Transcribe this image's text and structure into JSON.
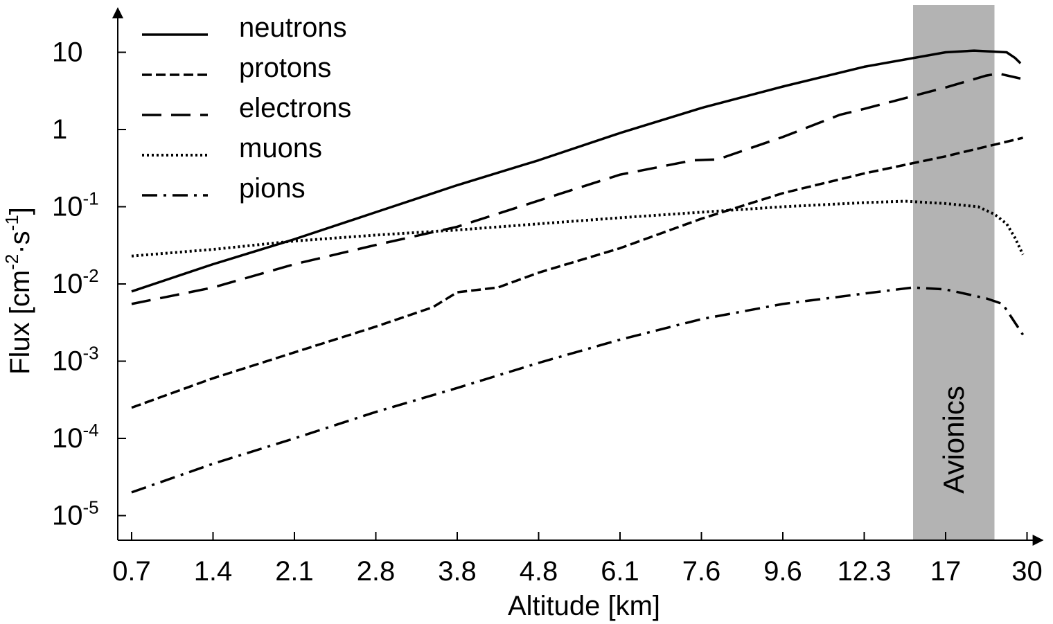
{
  "chart_data": {
    "type": "line",
    "xlabel": "Altitude [km]",
    "ylabel": {
      "base": "Flux [cm",
      "exp1": "-2",
      "mid": "·s",
      "exp2": "-1",
      "end": "]"
    },
    "x_scale": "categorical-ticks",
    "x_ticks": [
      "0.7",
      "1.4",
      "2.1",
      "2.8",
      "3.8",
      "4.8",
      "6.1",
      "7.6",
      "9.6",
      "12.3",
      "17",
      "30"
    ],
    "y_scale": "log",
    "y_range": [
      5e-06,
      20
    ],
    "y_ticks": [
      {
        "value": 1e-05,
        "base": "10",
        "exp": "-5"
      },
      {
        "value": 0.0001,
        "base": "10",
        "exp": "-4"
      },
      {
        "value": 0.001,
        "base": "10",
        "exp": "-3"
      },
      {
        "value": 0.01,
        "base": "10",
        "exp": "-2"
      },
      {
        "value": 0.1,
        "base": "10",
        "exp": "-1"
      },
      {
        "value": 1,
        "base": "1",
        "exp": ""
      },
      {
        "value": 10,
        "base": "10",
        "exp": ""
      }
    ],
    "legend_position": "top-left",
    "shaded_region": {
      "label": "Avionics",
      "x_from": 9.6,
      "x_to": 10.6,
      "note": "positions expressed as tick index",
      "color": "#b3b3b3"
    },
    "series": [
      {
        "name": "neutrons",
        "dash": "solid",
        "points": [
          [
            0,
            0.008
          ],
          [
            1,
            0.018
          ],
          [
            2,
            0.038
          ],
          [
            3,
            0.085
          ],
          [
            4,
            0.19
          ],
          [
            5,
            0.4
          ],
          [
            6,
            0.9
          ],
          [
            7,
            1.9
          ],
          [
            8,
            3.6
          ],
          [
            9,
            6.5
          ],
          [
            10,
            10.0
          ],
          [
            10.35,
            10.5
          ],
          [
            10.75,
            10.0
          ],
          [
            10.85,
            8.5
          ],
          [
            10.92,
            7.2
          ]
        ]
      },
      {
        "name": "protons",
        "dash": "short",
        "points": [
          [
            0,
            0.00025
          ],
          [
            1,
            0.0006
          ],
          [
            2,
            0.0013
          ],
          [
            3,
            0.0028
          ],
          [
            3.7,
            0.005
          ],
          [
            4,
            0.0078
          ],
          [
            4.5,
            0.009
          ],
          [
            5,
            0.014
          ],
          [
            6,
            0.029
          ],
          [
            7,
            0.07
          ],
          [
            8,
            0.15
          ],
          [
            9,
            0.27
          ],
          [
            10,
            0.45
          ],
          [
            10.95,
            0.78
          ]
        ]
      },
      {
        "name": "electrons",
        "dash": "long",
        "points": [
          [
            0,
            0.0055
          ],
          [
            1,
            0.009
          ],
          [
            2,
            0.018
          ],
          [
            3,
            0.032
          ],
          [
            4,
            0.055
          ],
          [
            5,
            0.12
          ],
          [
            6,
            0.26
          ],
          [
            6.9,
            0.4
          ],
          [
            7.2,
            0.41
          ],
          [
            8,
            0.8
          ],
          [
            8.7,
            1.55
          ],
          [
            9,
            1.85
          ],
          [
            10,
            3.5
          ],
          [
            10.5,
            5.0
          ],
          [
            10.65,
            5.3
          ],
          [
            10.95,
            4.5
          ]
        ]
      },
      {
        "name": "muons",
        "dash": "dotted",
        "points": [
          [
            0,
            0.023
          ],
          [
            1,
            0.028
          ],
          [
            2,
            0.036
          ],
          [
            3,
            0.043
          ],
          [
            4,
            0.05
          ],
          [
            5,
            0.06
          ],
          [
            6,
            0.072
          ],
          [
            7,
            0.085
          ],
          [
            8,
            0.1
          ],
          [
            9,
            0.113
          ],
          [
            9.5,
            0.118
          ],
          [
            10,
            0.11
          ],
          [
            10.4,
            0.1
          ],
          [
            10.6,
            0.08
          ],
          [
            10.75,
            0.06
          ],
          [
            10.85,
            0.04
          ],
          [
            10.95,
            0.024
          ]
        ]
      },
      {
        "name": "pions",
        "dash": "dashdot",
        "points": [
          [
            0,
            2e-05
          ],
          [
            1,
            4.7e-05
          ],
          [
            2,
            0.0001
          ],
          [
            3,
            0.00022
          ],
          [
            4,
            0.00045
          ],
          [
            5,
            0.00095
          ],
          [
            6,
            0.0019
          ],
          [
            7,
            0.0035
          ],
          [
            8,
            0.0055
          ],
          [
            9,
            0.0075
          ],
          [
            9.6,
            0.009
          ],
          [
            10,
            0.0085
          ],
          [
            10.5,
            0.0065
          ],
          [
            10.7,
            0.0055
          ],
          [
            10.95,
            0.0022
          ]
        ]
      }
    ]
  }
}
